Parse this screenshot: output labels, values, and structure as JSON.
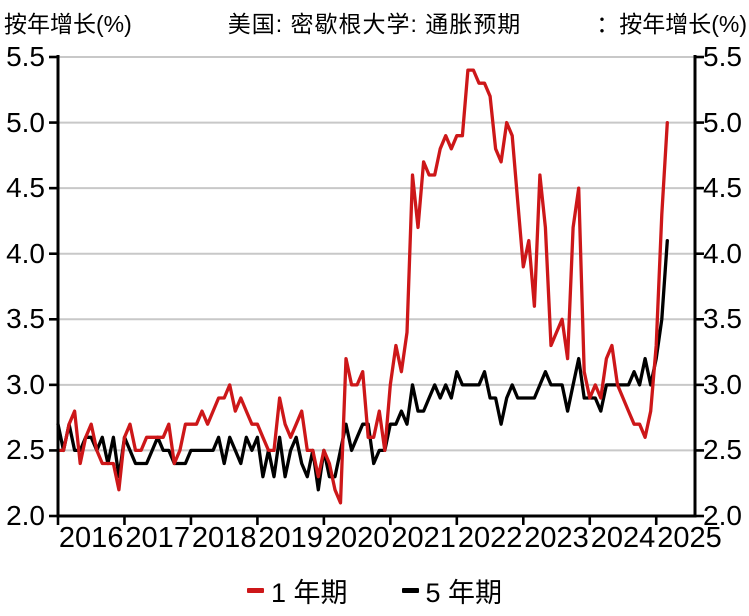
{
  "header": {
    "left_unit": "按年增长(%)",
    "title": "美国: 密歇根大学: 通胀预期",
    "right_unit_prefix": "：",
    "right_unit": "按年增长(%)"
  },
  "legend": {
    "items": [
      {
        "label": "1 年期",
        "color": "#cd1719"
      },
      {
        "label": "5 年期",
        "color": "#000000"
      }
    ]
  },
  "colors": {
    "series_1yr": "#cd1719",
    "series_5yr": "#000000",
    "grid": "#c8c8c8",
    "axis": "#000000",
    "background": "#ffffff"
  },
  "chart_data": {
    "type": "line",
    "title": "美国: 密歇根大学: 通胀预期",
    "ylabel": "按年增长(%)",
    "ylim": [
      2.0,
      5.5
    ],
    "y_ticks": [
      2.0,
      2.5,
      3.0,
      3.5,
      4.0,
      4.5,
      5.0,
      5.5
    ],
    "x_year_ticks": [
      2016,
      2017,
      2018,
      2019,
      2020,
      2021,
      2022,
      2023,
      2024,
      2025
    ],
    "x_start": "2016-01",
    "x_end": "2025-03",
    "x_domain_months": 115,
    "frequency": "monthly",
    "grid": true,
    "legend_position": "bottom",
    "series": [
      {
        "name": "1 年期",
        "color": "#cd1719",
        "values": [
          2.5,
          2.5,
          2.7,
          2.8,
          2.4,
          2.6,
          2.7,
          2.5,
          2.4,
          2.4,
          2.4,
          2.2,
          2.6,
          2.7,
          2.5,
          2.5,
          2.6,
          2.6,
          2.6,
          2.6,
          2.7,
          2.4,
          2.5,
          2.7,
          2.7,
          2.7,
          2.8,
          2.7,
          2.8,
          2.9,
          2.9,
          3.0,
          2.8,
          2.9,
          2.8,
          2.7,
          2.7,
          2.6,
          2.5,
          2.5,
          2.9,
          2.7,
          2.6,
          2.7,
          2.8,
          2.5,
          2.5,
          2.3,
          2.5,
          2.4,
          2.2,
          2.1,
          3.2,
          3.0,
          3.0,
          3.1,
          2.6,
          2.6,
          2.8,
          2.5,
          3.0,
          3.3,
          3.1,
          3.4,
          4.6,
          4.2,
          4.7,
          4.6,
          4.6,
          4.8,
          4.9,
          4.8,
          4.9,
          4.9,
          5.4,
          5.4,
          5.3,
          5.3,
          5.2,
          4.8,
          4.7,
          5.0,
          4.9,
          4.4,
          3.9,
          4.1,
          3.6,
          4.6,
          4.2,
          3.3,
          3.4,
          3.5,
          3.2,
          4.2,
          4.5,
          3.1,
          2.9,
          3.0,
          2.9,
          3.2,
          3.3,
          3.0,
          2.9,
          2.8,
          2.7,
          2.7,
          2.6,
          2.8,
          3.3,
          4.3,
          5.0
        ]
      },
      {
        "name": "5 年期",
        "color": "#000000",
        "values": [
          2.7,
          2.5,
          2.7,
          2.5,
          2.5,
          2.6,
          2.6,
          2.5,
          2.6,
          2.4,
          2.6,
          2.3,
          2.6,
          2.5,
          2.4,
          2.4,
          2.4,
          2.5,
          2.6,
          2.5,
          2.5,
          2.4,
          2.4,
          2.4,
          2.5,
          2.5,
          2.5,
          2.5,
          2.5,
          2.6,
          2.4,
          2.6,
          2.5,
          2.4,
          2.6,
          2.5,
          2.6,
          2.3,
          2.5,
          2.3,
          2.6,
          2.3,
          2.5,
          2.6,
          2.4,
          2.3,
          2.5,
          2.2,
          2.5,
          2.3,
          2.3,
          2.5,
          2.7,
          2.5,
          2.6,
          2.7,
          2.7,
          2.4,
          2.5,
          2.5,
          2.7,
          2.7,
          2.8,
          2.7,
          3.0,
          2.8,
          2.8,
          2.9,
          3.0,
          2.9,
          3.0,
          2.9,
          3.1,
          3.0,
          3.0,
          3.0,
          3.0,
          3.1,
          2.9,
          2.9,
          2.7,
          2.9,
          3.0,
          2.9,
          2.9,
          2.9,
          2.9,
          3.0,
          3.1,
          3.0,
          3.0,
          3.0,
          2.8,
          3.0,
          3.2,
          2.9,
          2.9,
          2.9,
          2.8,
          3.0,
          3.0,
          3.0,
          3.0,
          3.0,
          3.1,
          3.0,
          3.2,
          3.0,
          3.2,
          3.5,
          4.1
        ]
      }
    ]
  }
}
